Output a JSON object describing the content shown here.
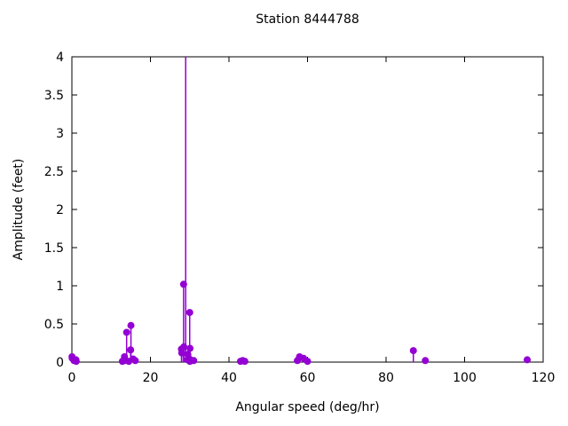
{
  "chart": {
    "title": "Station 8444788",
    "xlabel": "Angular speed (deg/hr)",
    "ylabel": "Amplitude (feet)"
  },
  "chart_data": {
    "type": "scatter",
    "style": "impulses-with-points",
    "title": "Station 8444788",
    "xlabel": "Angular speed (deg/hr)",
    "ylabel": "Amplitude (feet)",
    "xlim": [
      0,
      120
    ],
    "ylim": [
      0,
      4
    ],
    "xticks": [
      0,
      20,
      40,
      60,
      80,
      100,
      120
    ],
    "yticks": [
      0,
      0.5,
      1,
      1.5,
      2,
      2.5,
      3,
      3.5,
      4
    ],
    "grid": false,
    "legend": false,
    "marker_color": "#9400d3",
    "border_color": "#000000",
    "note": "Impulse at x=28.98 exceeds the y-axis maximum and is clipped at y=4 (no marker visible)",
    "points": [
      {
        "x": 0.04,
        "y": 0.07
      },
      {
        "x": 0.08,
        "y": 0.05
      },
      {
        "x": 0.54,
        "y": 0.02
      },
      {
        "x": 1.02,
        "y": 0.03
      },
      {
        "x": 1.1,
        "y": 0.01
      },
      {
        "x": 12.85,
        "y": 0.01
      },
      {
        "x": 13.4,
        "y": 0.07
      },
      {
        "x": 13.47,
        "y": 0.02
      },
      {
        "x": 13.94,
        "y": 0.39
      },
      {
        "x": 14.5,
        "y": 0.01
      },
      {
        "x": 14.96,
        "y": 0.16
      },
      {
        "x": 15.04,
        "y": 0.48
      },
      {
        "x": 15.59,
        "y": 0.04
      },
      {
        "x": 16.14,
        "y": 0.02
      },
      {
        "x": 27.9,
        "y": 0.17
      },
      {
        "x": 27.97,
        "y": 0.12
      },
      {
        "x": 28.44,
        "y": 1.02
      },
      {
        "x": 28.51,
        "y": 0.2
      },
      {
        "x": 28.98,
        "y": 4.6,
        "clipped_at_ymax": true
      },
      {
        "x": 29.46,
        "y": 0.03
      },
      {
        "x": 29.53,
        "y": 0.1
      },
      {
        "x": 29.96,
        "y": 0.04
      },
      {
        "x": 30.0,
        "y": 0.65
      },
      {
        "x": 30.04,
        "y": 0.01
      },
      {
        "x": 30.08,
        "y": 0.18
      },
      {
        "x": 31.02,
        "y": 0.02
      },
      {
        "x": 42.93,
        "y": 0.01
      },
      {
        "x": 43.48,
        "y": 0.02
      },
      {
        "x": 44.03,
        "y": 0.01
      },
      {
        "x": 57.42,
        "y": 0.02
      },
      {
        "x": 57.97,
        "y": 0.07
      },
      {
        "x": 58.98,
        "y": 0.05
      },
      {
        "x": 60.0,
        "y": 0.01
      },
      {
        "x": 86.95,
        "y": 0.15
      },
      {
        "x": 90.0,
        "y": 0.02
      },
      {
        "x": 115.94,
        "y": 0.03
      }
    ]
  }
}
